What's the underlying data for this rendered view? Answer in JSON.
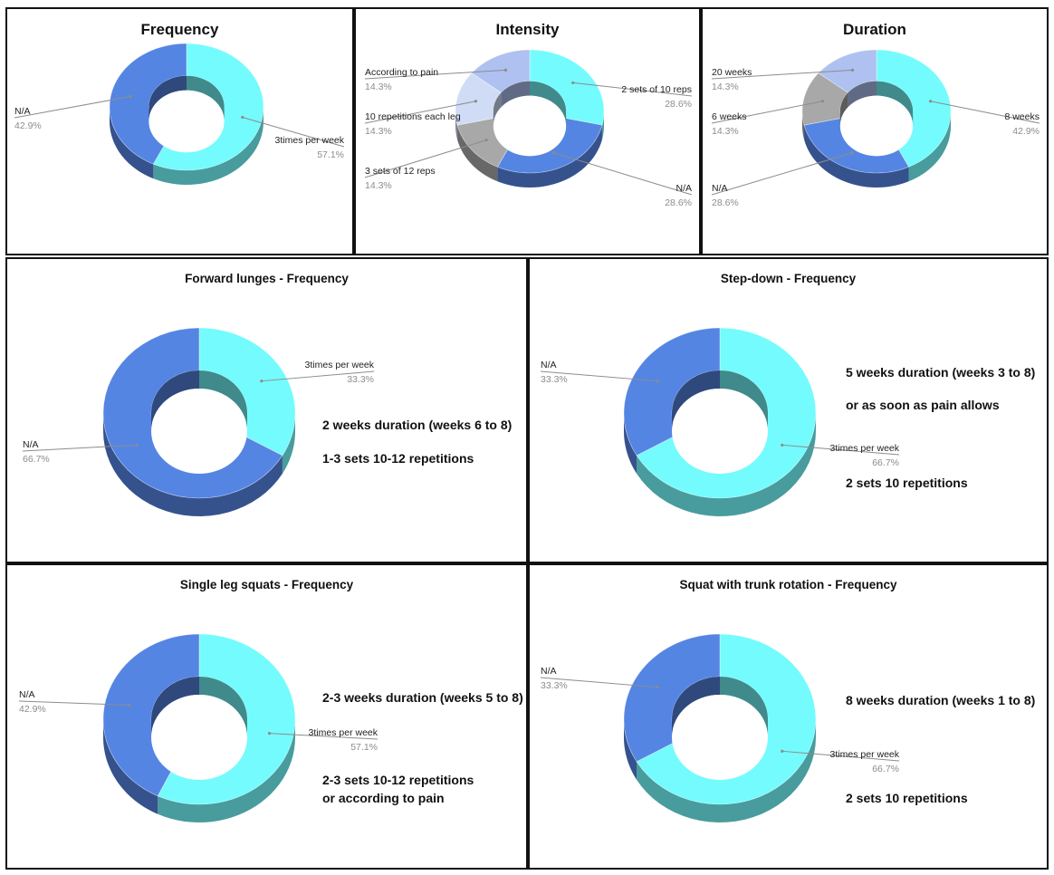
{
  "colors": {
    "cyan": "#74fbfd",
    "blue": "#5585e3",
    "gray": "#a8a8a8",
    "lightblue": "#aec1f0",
    "paleblue": "#d0dcf6"
  },
  "chart_data": [
    {
      "type": "pie",
      "title": "Frequency",
      "series": [
        {
          "label": "3times per week",
          "pct": "57.1%",
          "value": 57.1,
          "color": "cyan"
        },
        {
          "label": "N/A",
          "pct": "42.9%",
          "value": 42.9,
          "color": "blue"
        }
      ],
      "notes": []
    },
    {
      "type": "pie",
      "title": "Intensity",
      "series": [
        {
          "label": "2 sets of 10 reps",
          "pct": "28.6%",
          "value": 28.6,
          "color": "cyan"
        },
        {
          "label": "N/A",
          "pct": "28.6%",
          "value": 28.6,
          "color": "blue"
        },
        {
          "label": "3 sets of 12 reps",
          "pct": "14.3%",
          "value": 14.3,
          "color": "gray"
        },
        {
          "label": "10 repetitions each leg",
          "pct": "14.3%",
          "value": 14.3,
          "color": "paleblue"
        },
        {
          "label": "According to pain",
          "pct": "14.3%",
          "value": 14.3,
          "color": "lightblue"
        }
      ],
      "notes": []
    },
    {
      "type": "pie",
      "title": "Duration",
      "series": [
        {
          "label": "8 weeks",
          "pct": "42.9%",
          "value": 42.9,
          "color": "cyan"
        },
        {
          "label": "N/A",
          "pct": "28.6%",
          "value": 28.6,
          "color": "blue"
        },
        {
          "label": "6 weeks",
          "pct": "14.3%",
          "value": 14.3,
          "color": "gray"
        },
        {
          "label": "20 weeks",
          "pct": "14.3%",
          "value": 14.3,
          "color": "lightblue"
        }
      ],
      "notes": []
    },
    {
      "type": "pie",
      "title": "Forward lunges - Frequency",
      "series": [
        {
          "label": "3times per week",
          "pct": "33.3%",
          "value": 33.3,
          "color": "cyan"
        },
        {
          "label": "N/A",
          "pct": "66.7%",
          "value": 66.7,
          "color": "blue"
        }
      ],
      "notes": [
        "2 weeks duration (weeks 6 to 8)",
        "1-3 sets 10-12 repetitions"
      ]
    },
    {
      "type": "pie",
      "title": "Step-down - Frequency",
      "series": [
        {
          "label": "3times per week",
          "pct": "66.7%",
          "value": 66.7,
          "color": "cyan"
        },
        {
          "label": "N/A",
          "pct": "33.3%",
          "value": 33.3,
          "color": "blue"
        }
      ],
      "notes": [
        "5 weeks duration (weeks 3 to 8)",
        "or as soon as pain allows",
        "2 sets 10 repetitions"
      ]
    },
    {
      "type": "pie",
      "title": "Single leg squats - Frequency",
      "series": [
        {
          "label": "3times per week",
          "pct": "57.1%",
          "value": 57.1,
          "color": "cyan"
        },
        {
          "label": "N/A",
          "pct": "42.9%",
          "value": 42.9,
          "color": "blue"
        }
      ],
      "notes": [
        "2-3 weeks duration (weeks 5 to 8)",
        "2-3 sets 10-12 repetitions",
        "or according to pain"
      ]
    },
    {
      "type": "pie",
      "title": "Squat with trunk rotation - Frequency",
      "series": [
        {
          "label": "3times per week",
          "pct": "66.7%",
          "value": 66.7,
          "color": "cyan"
        },
        {
          "label": "N/A",
          "pct": "33.3%",
          "value": 33.3,
          "color": "blue"
        }
      ],
      "notes": [
        "8 weeks duration (weeks 1 to 8)",
        "2 sets 10 repetitions"
      ]
    }
  ]
}
